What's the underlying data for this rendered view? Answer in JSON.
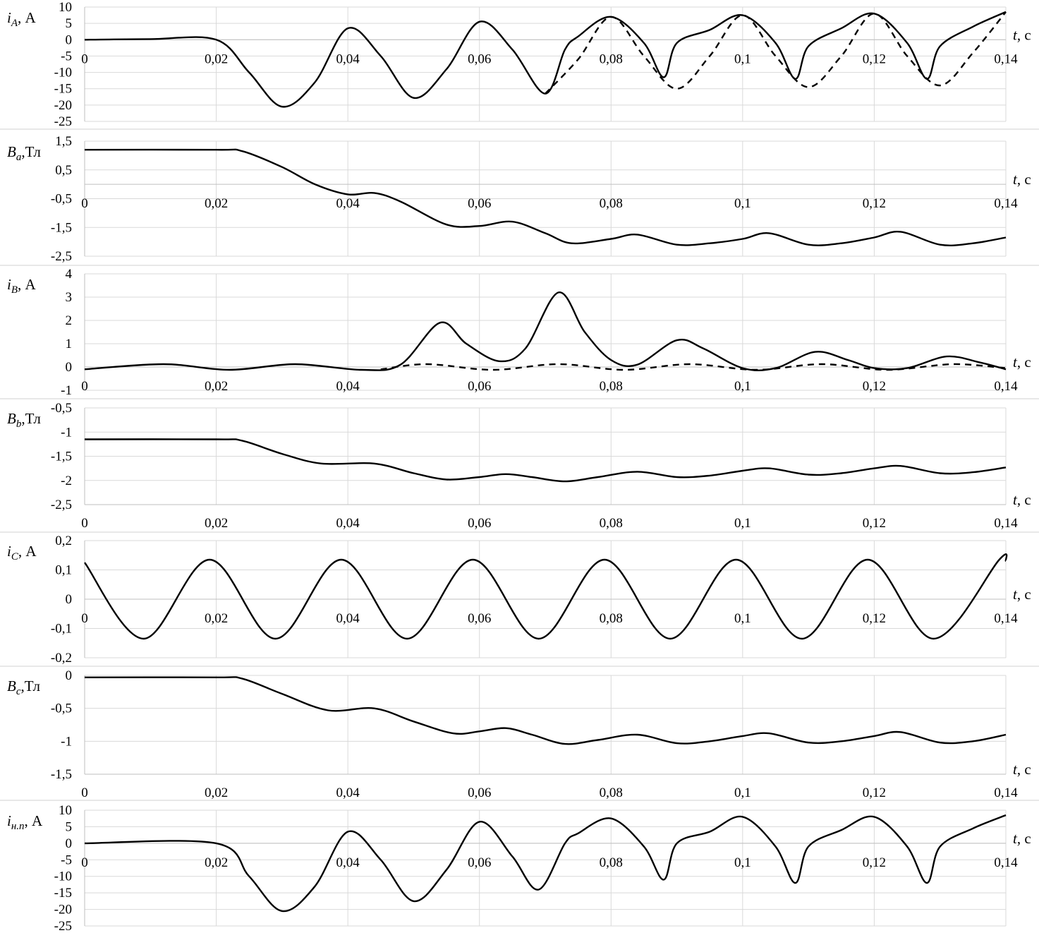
{
  "chart_data": [
    {
      "type": "line",
      "ylabel": {
        "sym": "i",
        "sub": "A",
        "unit": ", А"
      },
      "xlabel": {
        "sym": "t",
        "unit": ", с"
      },
      "xlim": [
        0,
        0.14
      ],
      "ylim": [
        -25,
        10
      ],
      "yticks": [
        10,
        5,
        0,
        -5,
        -10,
        -15,
        -20,
        -25
      ],
      "ytick_labels": [
        "10",
        "5",
        "0",
        "-5",
        "-10",
        "-15",
        "-20",
        "-25"
      ],
      "grid": true,
      "xaxis_at_zero": true,
      "series": [
        {
          "style": "solid",
          "points": [
            [
              0,
              0
            ],
            [
              0.01,
              0.2
            ],
            [
              0.02,
              0
            ],
            [
              0.025,
              -10
            ],
            [
              0.03,
              -20.5
            ],
            [
              0.035,
              -13
            ],
            [
              0.04,
              3.5
            ],
            [
              0.045,
              -5
            ],
            [
              0.05,
              -17.8
            ],
            [
              0.055,
              -9
            ],
            [
              0.06,
              5.5
            ],
            [
              0.065,
              -3
            ],
            [
              0.07,
              -16.5
            ],
            [
              0.073,
              -3
            ],
            [
              0.075,
              1
            ],
            [
              0.08,
              7
            ],
            [
              0.085,
              -1
            ],
            [
              0.088,
              -11.5
            ],
            [
              0.09,
              -1
            ],
            [
              0.095,
              3
            ],
            [
              0.1,
              7.5
            ],
            [
              0.105,
              -1
            ],
            [
              0.108,
              -12
            ],
            [
              0.11,
              -2
            ],
            [
              0.115,
              3.5
            ],
            [
              0.12,
              8
            ],
            [
              0.125,
              -1
            ],
            [
              0.128,
              -12
            ],
            [
              0.13,
              -2
            ],
            [
              0.135,
              4
            ],
            [
              0.14,
              8.5
            ]
          ]
        },
        {
          "style": "dashed",
          "points": [
            [
              0.07,
              -16.5
            ],
            [
              0.075,
              -6
            ],
            [
              0.08,
              7
            ],
            [
              0.085,
              -5
            ],
            [
              0.09,
              -15
            ],
            [
              0.095,
              -5
            ],
            [
              0.1,
              7.5
            ],
            [
              0.105,
              -5
            ],
            [
              0.11,
              -14.5
            ],
            [
              0.115,
              -5
            ],
            [
              0.12,
              8
            ],
            [
              0.125,
              -5
            ],
            [
              0.13,
              -14
            ],
            [
              0.135,
              -4
            ],
            [
              0.14,
              8.5
            ]
          ]
        }
      ]
    },
    {
      "type": "line",
      "ylabel": {
        "sym": "B",
        "sub": "a",
        "unit": ",Тл"
      },
      "xlabel": {
        "sym": "t",
        "unit": ", с"
      },
      "xlim": [
        0,
        0.14
      ],
      "ylim": [
        -2.5,
        1.5
      ],
      "yticks": [
        1.5,
        0.5,
        -0.5,
        -1.5,
        -2.5
      ],
      "ytick_labels": [
        "1,5",
        "0,5",
        "-0,5",
        "-1,5",
        "-2,5"
      ],
      "grid": true,
      "xaxis_at_zero": true,
      "series": [
        {
          "style": "solid",
          "points": [
            [
              0,
              1.2
            ],
            [
              0.02,
              1.2
            ],
            [
              0.024,
              1.15
            ],
            [
              0.03,
              0.6
            ],
            [
              0.035,
              0
            ],
            [
              0.04,
              -0.35
            ],
            [
              0.044,
              -0.3
            ],
            [
              0.048,
              -0.6
            ],
            [
              0.055,
              -1.4
            ],
            [
              0.06,
              -1.45
            ],
            [
              0.065,
              -1.3
            ],
            [
              0.07,
              -1.7
            ],
            [
              0.074,
              -2.05
            ],
            [
              0.08,
              -1.9
            ],
            [
              0.084,
              -1.75
            ],
            [
              0.09,
              -2.1
            ],
            [
              0.095,
              -2.05
            ],
            [
              0.1,
              -1.9
            ],
            [
              0.104,
              -1.7
            ],
            [
              0.11,
              -2.1
            ],
            [
              0.115,
              -2.05
            ],
            [
              0.12,
              -1.85
            ],
            [
              0.124,
              -1.65
            ],
            [
              0.13,
              -2.1
            ],
            [
              0.135,
              -2.05
            ],
            [
              0.14,
              -1.85
            ]
          ]
        }
      ]
    },
    {
      "type": "line",
      "ylabel": {
        "sym": "i",
        "sub": "B",
        "unit": ", А"
      },
      "xlabel": {
        "sym": "t",
        "unit": ", с"
      },
      "xlim": [
        0,
        0.14
      ],
      "ylim": [
        -1,
        4
      ],
      "yticks": [
        4,
        3,
        2,
        1,
        0,
        -1
      ],
      "ytick_labels": [
        "4",
        "3",
        "2",
        "1",
        "0",
        "-1"
      ],
      "grid": true,
      "xaxis_at_zero": true,
      "series": [
        {
          "style": "solid",
          "points": [
            [
              0,
              -0.1
            ],
            [
              0.012,
              0.12
            ],
            [
              0.022,
              -0.12
            ],
            [
              0.032,
              0.12
            ],
            [
              0.042,
              -0.12
            ],
            [
              0.048,
              0.1
            ],
            [
              0.054,
              1.9
            ],
            [
              0.058,
              1.0
            ],
            [
              0.063,
              0.25
            ],
            [
              0.067,
              0.8
            ],
            [
              0.072,
              3.2
            ],
            [
              0.076,
              1.5
            ],
            [
              0.08,
              0.3
            ],
            [
              0.084,
              0.1
            ],
            [
              0.09,
              1.15
            ],
            [
              0.094,
              0.8
            ],
            [
              0.1,
              -0.05
            ],
            [
              0.105,
              -0.05
            ],
            [
              0.111,
              0.65
            ],
            [
              0.116,
              0.3
            ],
            [
              0.12,
              -0.05
            ],
            [
              0.125,
              -0.05
            ],
            [
              0.131,
              0.45
            ],
            [
              0.136,
              0.2
            ],
            [
              0.14,
              -0.1
            ]
          ]
        },
        {
          "style": "dashed",
          "points": [
            [
              0.045,
              -0.1
            ],
            [
              0.052,
              0.12
            ],
            [
              0.062,
              -0.12
            ],
            [
              0.072,
              0.12
            ],
            [
              0.082,
              -0.12
            ],
            [
              0.092,
              0.12
            ],
            [
              0.102,
              -0.12
            ],
            [
              0.112,
              0.12
            ],
            [
              0.122,
              -0.12
            ],
            [
              0.132,
              0.12
            ],
            [
              0.14,
              -0.05
            ]
          ]
        }
      ]
    },
    {
      "type": "line",
      "ylabel": {
        "sym": "B",
        "sub": "b",
        "unit": ",Тл"
      },
      "xlabel": {
        "sym": "t",
        "unit": ", с"
      },
      "xlim": [
        0,
        0.14
      ],
      "ylim": [
        -2.5,
        -0.5
      ],
      "yticks": [
        -0.5,
        -1,
        -1.5,
        -2,
        -2.5
      ],
      "ytick_labels": [
        "-0,5",
        "-1",
        "-1,5",
        "-2",
        "-2,5"
      ],
      "grid": true,
      "xaxis_at_zero": false,
      "series": [
        {
          "style": "solid",
          "points": [
            [
              0,
              -1.15
            ],
            [
              0.02,
              -1.15
            ],
            [
              0.024,
              -1.18
            ],
            [
              0.03,
              -1.45
            ],
            [
              0.036,
              -1.65
            ],
            [
              0.044,
              -1.65
            ],
            [
              0.05,
              -1.85
            ],
            [
              0.055,
              -1.98
            ],
            [
              0.06,
              -1.93
            ],
            [
              0.064,
              -1.87
            ],
            [
              0.068,
              -1.93
            ],
            [
              0.073,
              -2.02
            ],
            [
              0.078,
              -1.93
            ],
            [
              0.084,
              -1.82
            ],
            [
              0.09,
              -1.93
            ],
            [
              0.095,
              -1.9
            ],
            [
              0.1,
              -1.8
            ],
            [
              0.104,
              -1.75
            ],
            [
              0.11,
              -1.88
            ],
            [
              0.115,
              -1.85
            ],
            [
              0.12,
              -1.75
            ],
            [
              0.124,
              -1.7
            ],
            [
              0.13,
              -1.85
            ],
            [
              0.135,
              -1.83
            ],
            [
              0.14,
              -1.73
            ]
          ]
        }
      ]
    },
    {
      "type": "line",
      "ylabel": {
        "sym": "i",
        "sub": "C",
        "unit": ", А"
      },
      "xlabel": {
        "sym": "t",
        "unit": ", с"
      },
      "xlim": [
        0,
        0.14
      ],
      "ylim": [
        -0.2,
        0.2
      ],
      "yticks": [
        0.2,
        0.1,
        0,
        -0.1,
        -0.2
      ],
      "ytick_labels": [
        "0,2",
        "0,1",
        "0",
        "-0,1",
        "-0,2"
      ],
      "grid": true,
      "xaxis_at_zero": true,
      "series": [
        {
          "style": "solid",
          "points": [
            [
              0,
              0.125
            ],
            [
              0.009,
              -0.135
            ],
            [
              0.019,
              0.135
            ],
            [
              0.029,
              -0.135
            ],
            [
              0.039,
              0.135
            ],
            [
              0.049,
              -0.135
            ],
            [
              0.059,
              0.135
            ],
            [
              0.069,
              -0.135
            ],
            [
              0.079,
              0.135
            ],
            [
              0.089,
              -0.135
            ],
            [
              0.099,
              0.135
            ],
            [
              0.109,
              -0.135
            ],
            [
              0.119,
              0.135
            ],
            [
              0.129,
              -0.135
            ],
            [
              0.139,
              0.135
            ],
            [
              0.14,
              0.13
            ]
          ]
        }
      ]
    },
    {
      "type": "line",
      "ylabel": {
        "sym": "B",
        "sub": "c",
        "unit": ",Тл"
      },
      "xlabel": {
        "sym": "t",
        "unit": ", с"
      },
      "xlim": [
        0,
        0.14
      ],
      "ylim": [
        -1.5,
        0
      ],
      "yticks": [
        0,
        -0.5,
        -1,
        -1.5
      ],
      "ytick_labels": [
        "0",
        "-0,5",
        "-1",
        "-1,5"
      ],
      "grid": true,
      "xaxis_at_zero": false,
      "series": [
        {
          "style": "solid",
          "points": [
            [
              0,
              -0.03
            ],
            [
              0.02,
              -0.03
            ],
            [
              0.024,
              -0.05
            ],
            [
              0.03,
              -0.28
            ],
            [
              0.037,
              -0.53
            ],
            [
              0.044,
              -0.5
            ],
            [
              0.05,
              -0.7
            ],
            [
              0.056,
              -0.88
            ],
            [
              0.06,
              -0.85
            ],
            [
              0.064,
              -0.8
            ],
            [
              0.068,
              -0.9
            ],
            [
              0.073,
              -1.04
            ],
            [
              0.078,
              -0.98
            ],
            [
              0.084,
              -0.9
            ],
            [
              0.09,
              -1.03
            ],
            [
              0.095,
              -1.0
            ],
            [
              0.1,
              -0.92
            ],
            [
              0.104,
              -0.88
            ],
            [
              0.11,
              -1.02
            ],
            [
              0.115,
              -1.0
            ],
            [
              0.12,
              -0.92
            ],
            [
              0.124,
              -0.86
            ],
            [
              0.13,
              -1.02
            ],
            [
              0.135,
              -1.0
            ],
            [
              0.14,
              -0.9
            ]
          ]
        }
      ]
    },
    {
      "type": "line",
      "ylabel": {
        "sym": "i",
        "sub": "н.п",
        "unit": ", А"
      },
      "xlabel": {
        "sym": "t",
        "unit": ", с"
      },
      "xlim": [
        0,
        0.14
      ],
      "ylim": [
        -25,
        10
      ],
      "yticks": [
        10,
        5,
        0,
        -5,
        -10,
        -15,
        -20,
        -25
      ],
      "ytick_labels": [
        "10",
        "5",
        "0",
        "-5",
        "-10",
        "-15",
        "-20",
        "-25"
      ],
      "grid": true,
      "xaxis_at_zero": true,
      "series": [
        {
          "style": "solid",
          "points": [
            [
              0,
              0
            ],
            [
              0.02,
              0
            ],
            [
              0.025,
              -10
            ],
            [
              0.03,
              -20.5
            ],
            [
              0.035,
              -13
            ],
            [
              0.04,
              3.5
            ],
            [
              0.045,
              -5
            ],
            [
              0.05,
              -17.5
            ],
            [
              0.055,
              -8
            ],
            [
              0.06,
              6.5
            ],
            [
              0.065,
              -4
            ],
            [
              0.069,
              -14
            ],
            [
              0.073,
              0
            ],
            [
              0.075,
              3
            ],
            [
              0.08,
              7.5
            ],
            [
              0.085,
              -1
            ],
            [
              0.088,
              -11
            ],
            [
              0.09,
              0
            ],
            [
              0.095,
              3.5
            ],
            [
              0.1,
              8
            ],
            [
              0.105,
              -1
            ],
            [
              0.108,
              -12
            ],
            [
              0.11,
              -1
            ],
            [
              0.115,
              4
            ],
            [
              0.12,
              8
            ],
            [
              0.125,
              -1
            ],
            [
              0.128,
              -12
            ],
            [
              0.13,
              -1
            ],
            [
              0.135,
              4.5
            ],
            [
              0.14,
              8.5
            ]
          ]
        }
      ]
    }
  ],
  "x_ticks": [
    0,
    0.02,
    0.04,
    0.06,
    0.08,
    0.1,
    0.12,
    0.14
  ],
  "x_tick_labels": [
    "0",
    "0,02",
    "0,04",
    "0,06",
    "0,08",
    "0,1",
    "0,12",
    "0,14"
  ]
}
